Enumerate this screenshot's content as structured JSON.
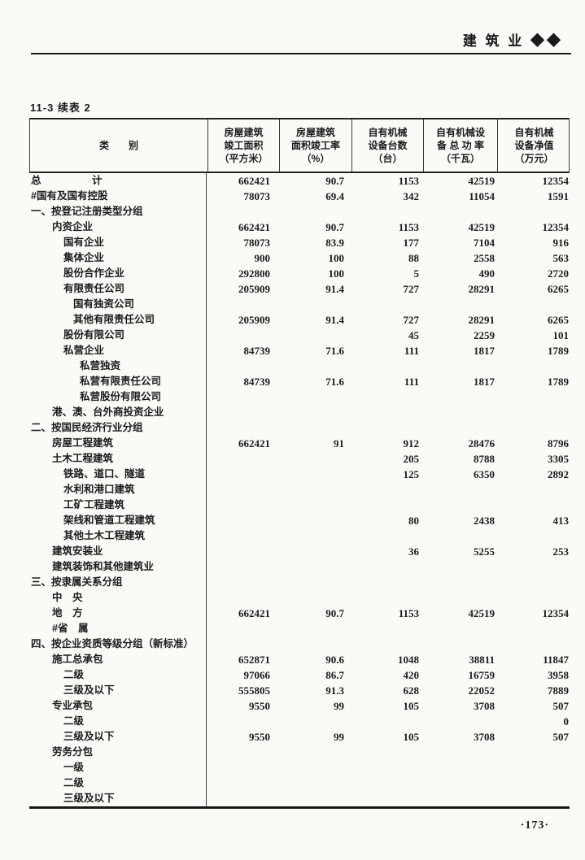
{
  "page": {
    "running_head": "建 筑 业 ◆◆",
    "table_label": "11-3 续表 2",
    "page_number": "·173·",
    "ink_color": "#1b1b1b",
    "paper_color": "#fafaf7"
  },
  "table": {
    "columns": [
      {
        "lines": [
          "类　　别"
        ]
      },
      {
        "lines": [
          "房屋建筑",
          "竣工面积",
          "（平方米）"
        ]
      },
      {
        "lines": [
          "房屋建筑",
          "面积竣工率",
          "（%）"
        ]
      },
      {
        "lines": [
          "自有机械",
          "设备台数",
          "（台）"
        ]
      },
      {
        "lines": [
          "自有机械设",
          "备 总 功 率",
          "（千瓦）"
        ]
      },
      {
        "lines": [
          "自有机械",
          "设备净值",
          "（万元）"
        ]
      }
    ],
    "rows": [
      {
        "label": "总　　　　　计",
        "indent": 0,
        "values": [
          "662421",
          "90.7",
          "1153",
          "42519",
          "12354"
        ]
      },
      {
        "label": "#国有及国有控股",
        "indent": 0,
        "values": [
          "78073",
          "69.4",
          "342",
          "11054",
          "1591"
        ]
      },
      {
        "label": "一、按登记注册类型分组",
        "indent": 0,
        "values": [
          "",
          "",
          "",
          "",
          ""
        ]
      },
      {
        "label": "内资企业",
        "indent": 1,
        "values": [
          "662421",
          "90.7",
          "1153",
          "42519",
          "12354"
        ]
      },
      {
        "label": "国有企业",
        "indent": 2,
        "values": [
          "78073",
          "83.9",
          "177",
          "7104",
          "916"
        ]
      },
      {
        "label": "集体企业",
        "indent": 2,
        "values": [
          "900",
          "100",
          "88",
          "2558",
          "563"
        ]
      },
      {
        "label": "股份合作企业",
        "indent": 2,
        "values": [
          "292800",
          "100",
          "5",
          "490",
          "2720"
        ]
      },
      {
        "label": "有限责任公司",
        "indent": 2,
        "values": [
          "205909",
          "91.4",
          "727",
          "28291",
          "6265"
        ]
      },
      {
        "label": "国有独资公司",
        "indent": 3,
        "values": [
          "",
          "",
          "",
          "",
          ""
        ]
      },
      {
        "label": "其他有限责任公司",
        "indent": 3,
        "values": [
          "205909",
          "91.4",
          "727",
          "28291",
          "6265"
        ]
      },
      {
        "label": "股份有限公司",
        "indent": 2,
        "values": [
          "",
          "",
          "45",
          "2259",
          "101"
        ]
      },
      {
        "label": "私营企业",
        "indent": 2,
        "values": [
          "84739",
          "71.6",
          "111",
          "1817",
          "1789"
        ]
      },
      {
        "label": "私营独资",
        "indent": 4,
        "values": [
          "",
          "",
          "",
          "",
          ""
        ]
      },
      {
        "label": "私营有限责任公司",
        "indent": 4,
        "values": [
          "84739",
          "71.6",
          "111",
          "1817",
          "1789"
        ]
      },
      {
        "label": "私营股份有限公司",
        "indent": 4,
        "values": [
          "",
          "",
          "",
          "",
          ""
        ]
      },
      {
        "label": "港、澳、台外商投资企业",
        "indent": 1,
        "values": [
          "",
          "",
          "",
          "",
          ""
        ]
      },
      {
        "label": "二、按国民经济行业分组",
        "indent": 0,
        "values": [
          "",
          "",
          "",
          "",
          ""
        ]
      },
      {
        "label": "房屋工程建筑",
        "indent": 1,
        "values": [
          "662421",
          "91",
          "912",
          "28476",
          "8796"
        ]
      },
      {
        "label": "土木工程建筑",
        "indent": 1,
        "values": [
          "",
          "",
          "205",
          "8788",
          "3305"
        ]
      },
      {
        "label": "铁路、道口、隧道",
        "indent": 2,
        "values": [
          "",
          "",
          "125",
          "6350",
          "2892"
        ]
      },
      {
        "label": "水利和港口建筑",
        "indent": 2,
        "values": [
          "",
          "",
          "",
          "",
          ""
        ]
      },
      {
        "label": "工矿工程建筑",
        "indent": 2,
        "values": [
          "",
          "",
          "",
          "",
          ""
        ]
      },
      {
        "label": "架线和管道工程建筑",
        "indent": 2,
        "values": [
          "",
          "",
          "80",
          "2438",
          "413"
        ]
      },
      {
        "label": "其他土木工程建筑",
        "indent": 2,
        "values": [
          "",
          "",
          "",
          "",
          ""
        ]
      },
      {
        "label": "建筑安装业",
        "indent": 1,
        "values": [
          "",
          "",
          "36",
          "5255",
          "253"
        ]
      },
      {
        "label": "建筑装饰和其他建筑业",
        "indent": 1,
        "values": [
          "",
          "",
          "",
          "",
          ""
        ]
      },
      {
        "label": "三、按隶属关系分组",
        "indent": 0,
        "values": [
          "",
          "",
          "",
          "",
          ""
        ]
      },
      {
        "label": "中　央",
        "indent": 1,
        "values": [
          "",
          "",
          "",
          "",
          ""
        ]
      },
      {
        "label": "地　方",
        "indent": 1,
        "values": [
          "662421",
          "90.7",
          "1153",
          "42519",
          "12354"
        ]
      },
      {
        "label": "#省　属",
        "indent": 1,
        "values": [
          "",
          "",
          "",
          "",
          ""
        ]
      },
      {
        "label": "四、按企业资质等级分组（新标准）",
        "indent": 0,
        "values": [
          "",
          "",
          "",
          "",
          ""
        ]
      },
      {
        "label": "施工总承包",
        "indent": 1,
        "values": [
          "652871",
          "90.6",
          "1048",
          "38811",
          "11847"
        ]
      },
      {
        "label": "二级",
        "indent": 2,
        "values": [
          "97066",
          "86.7",
          "420",
          "16759",
          "3958"
        ]
      },
      {
        "label": "三级及以下",
        "indent": 2,
        "values": [
          "555805",
          "91.3",
          "628",
          "22052",
          "7889"
        ]
      },
      {
        "label": "专业承包",
        "indent": 1,
        "values": [
          "9550",
          "99",
          "105",
          "3708",
          "507"
        ]
      },
      {
        "label": "二级",
        "indent": 2,
        "values": [
          "",
          "",
          "",
          "",
          "0"
        ]
      },
      {
        "label": "三级及以下",
        "indent": 2,
        "values": [
          "9550",
          "99",
          "105",
          "3708",
          "507"
        ]
      },
      {
        "label": "劳务分包",
        "indent": 1,
        "values": [
          "",
          "",
          "",
          "",
          ""
        ]
      },
      {
        "label": "一级",
        "indent": 2,
        "values": [
          "",
          "",
          "",
          "",
          ""
        ]
      },
      {
        "label": "二级",
        "indent": 2,
        "values": [
          "",
          "",
          "",
          "",
          ""
        ]
      },
      {
        "label": "三级及以下",
        "indent": 2,
        "values": [
          "",
          "",
          "",
          "",
          ""
        ]
      }
    ]
  }
}
